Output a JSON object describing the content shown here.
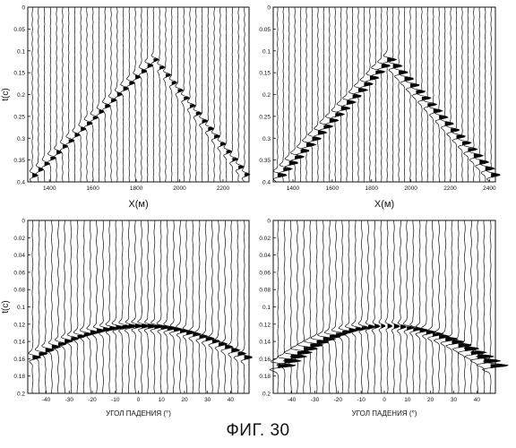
{
  "figure_caption": "ФИГ. 30",
  "chart_data": [
    {
      "type": "line",
      "panel": "top-left",
      "ylabel": "t(c)",
      "xlabel": "X(м)",
      "xlim": [
        1300,
        2320
      ],
      "ylim": [
        0,
        0.4
      ],
      "xticks": [
        "1400",
        "1600",
        "1800",
        "2000",
        "2200"
      ],
      "yticks": [
        "0",
        "0.05",
        "0.1",
        "0.15",
        "0.2",
        "0.25",
        "0.3",
        "0.35",
        "0.4"
      ],
      "traces": 36,
      "event": {
        "apex_x": 1880,
        "apex_t": 0.12,
        "edge_t": 0.39,
        "edge_x": [
          1310,
          2310
        ],
        "fill": "light"
      }
    },
    {
      "type": "line",
      "panel": "top-right",
      "ylabel": "",
      "xlabel": "X(м)",
      "xlim": [
        1300,
        2430
      ],
      "ylim": [
        0,
        0.4
      ],
      "xticks": [
        "1400",
        "1600",
        "1800",
        "2000",
        "2200",
        "2400"
      ],
      "yticks": [
        "0",
        "0.05",
        "0.1",
        "0.15",
        "0.2",
        "0.25",
        "0.3",
        "0.35",
        "0.4"
      ],
      "traces": 38,
      "event": {
        "apex_x": 1880,
        "apex_t": 0.12,
        "edge_t": 0.39,
        "edge_x": [
          1310,
          2420
        ],
        "fill": "heavy"
      }
    },
    {
      "type": "line",
      "panel": "bottom-left",
      "ylabel": "t(c)",
      "xlabel": "УГОЛ ПАДЕНИЯ (°)",
      "xlim": [
        -48,
        48
      ],
      "ylim": [
        0,
        0.2
      ],
      "xticks": [
        "-40",
        "-30",
        "-20",
        "-10",
        "0",
        "10",
        "20",
        "30",
        "40"
      ],
      "yticks": [
        "0",
        "0.02",
        "0.04",
        "0.06",
        "0.08",
        "0.1",
        "0.12",
        "0.14",
        "0.16",
        "0.18",
        "0.2"
      ],
      "traces": 34,
      "event": {
        "apex_x": 0,
        "apex_t": 0.122,
        "edge_t": 0.16,
        "edge_x": [
          -47,
          47
        ],
        "fill": "light"
      }
    },
    {
      "type": "line",
      "panel": "bottom-right",
      "ylabel": "",
      "xlabel": "УГОЛ ПАДЕНИЯ (°)",
      "xlim": [
        -48,
        48
      ],
      "ylim": [
        0,
        0.2
      ],
      "xticks": [
        "-40",
        "-30",
        "-20",
        "-10",
        "0",
        "10",
        "20",
        "30",
        "40"
      ],
      "yticks": [
        "0",
        "0.02",
        "0.04",
        "0.06",
        "0.08",
        "0.1",
        "0.12",
        "0.14",
        "0.16",
        "0.18",
        "0.2"
      ],
      "traces": 34,
      "event": {
        "apex_x": 0,
        "apex_t": 0.122,
        "edge_t": 0.17,
        "edge_x": [
          -47,
          47
        ],
        "fill": "heavy"
      }
    }
  ]
}
